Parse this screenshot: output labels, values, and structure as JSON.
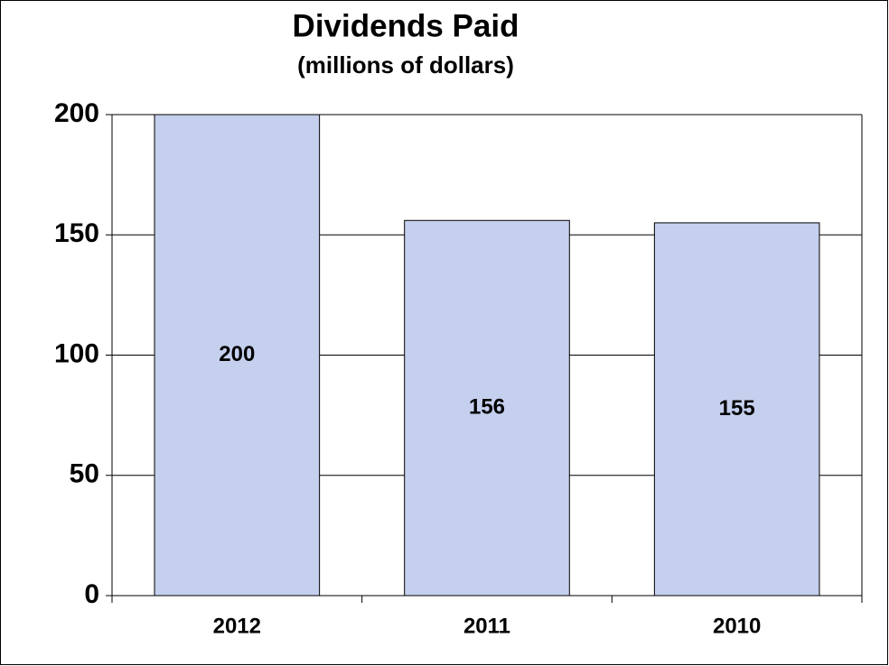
{
  "chart_data": {
    "type": "bar",
    "title": "Dividends Paid",
    "subtitle": "(millions of dollars)",
    "categories": [
      "2012",
      "2011",
      "2010"
    ],
    "values": [
      200,
      156,
      155
    ],
    "color": "#c5d0ee",
    "ylim": [
      0,
      200
    ],
    "yticks": [
      0,
      50,
      100,
      150,
      200
    ],
    "grid": true
  }
}
